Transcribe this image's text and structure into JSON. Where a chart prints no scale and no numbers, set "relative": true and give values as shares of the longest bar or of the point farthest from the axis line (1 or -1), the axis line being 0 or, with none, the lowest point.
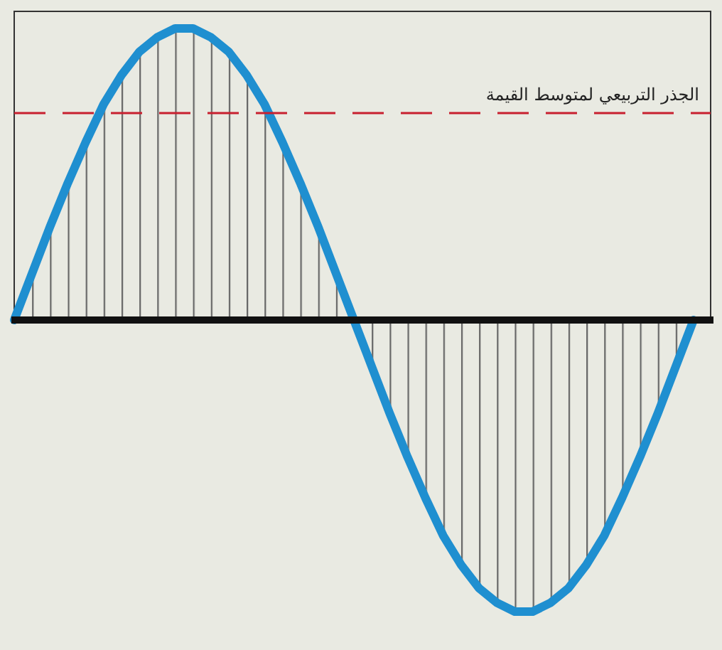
{
  "chart_data": {
    "type": "line",
    "relative": true,
    "categories": [
      null,
      null,
      null,
      null,
      null,
      null,
      null,
      null,
      null,
      null,
      null,
      null,
      null,
      null,
      null,
      null,
      null,
      null,
      null,
      null,
      null,
      null,
      null,
      null,
      null,
      null,
      null,
      null,
      null,
      null,
      null,
      null,
      null,
      null,
      null,
      null,
      null,
      null,
      null
    ],
    "series": [
      {
        "color": "#1f8fd0",
        "values": [
          0,
          0.16,
          0.32,
          0.47,
          0.61,
          0.74,
          0.84,
          0.92,
          0.97,
          1,
          1,
          0.97,
          0.92,
          0.84,
          0.74,
          0.61,
          0.47,
          0.32,
          0.16,
          0,
          -0.16,
          -0.32,
          -0.47,
          -0.61,
          -0.74,
          -0.84,
          -0.92,
          -0.97,
          -1,
          -1,
          -0.97,
          -0.92,
          -0.84,
          -0.74,
          -0.61,
          -0.47,
          -0.32,
          -0.16,
          0
        ]
      }
    ],
    "ref_lines": [
      {
        "axis": "y",
        "value": 0.71,
        "label": "الجذر التربيعي لمتوسط القيمة",
        "color": "#c8202f",
        "line_style": "dashed"
      }
    ]
  }
}
